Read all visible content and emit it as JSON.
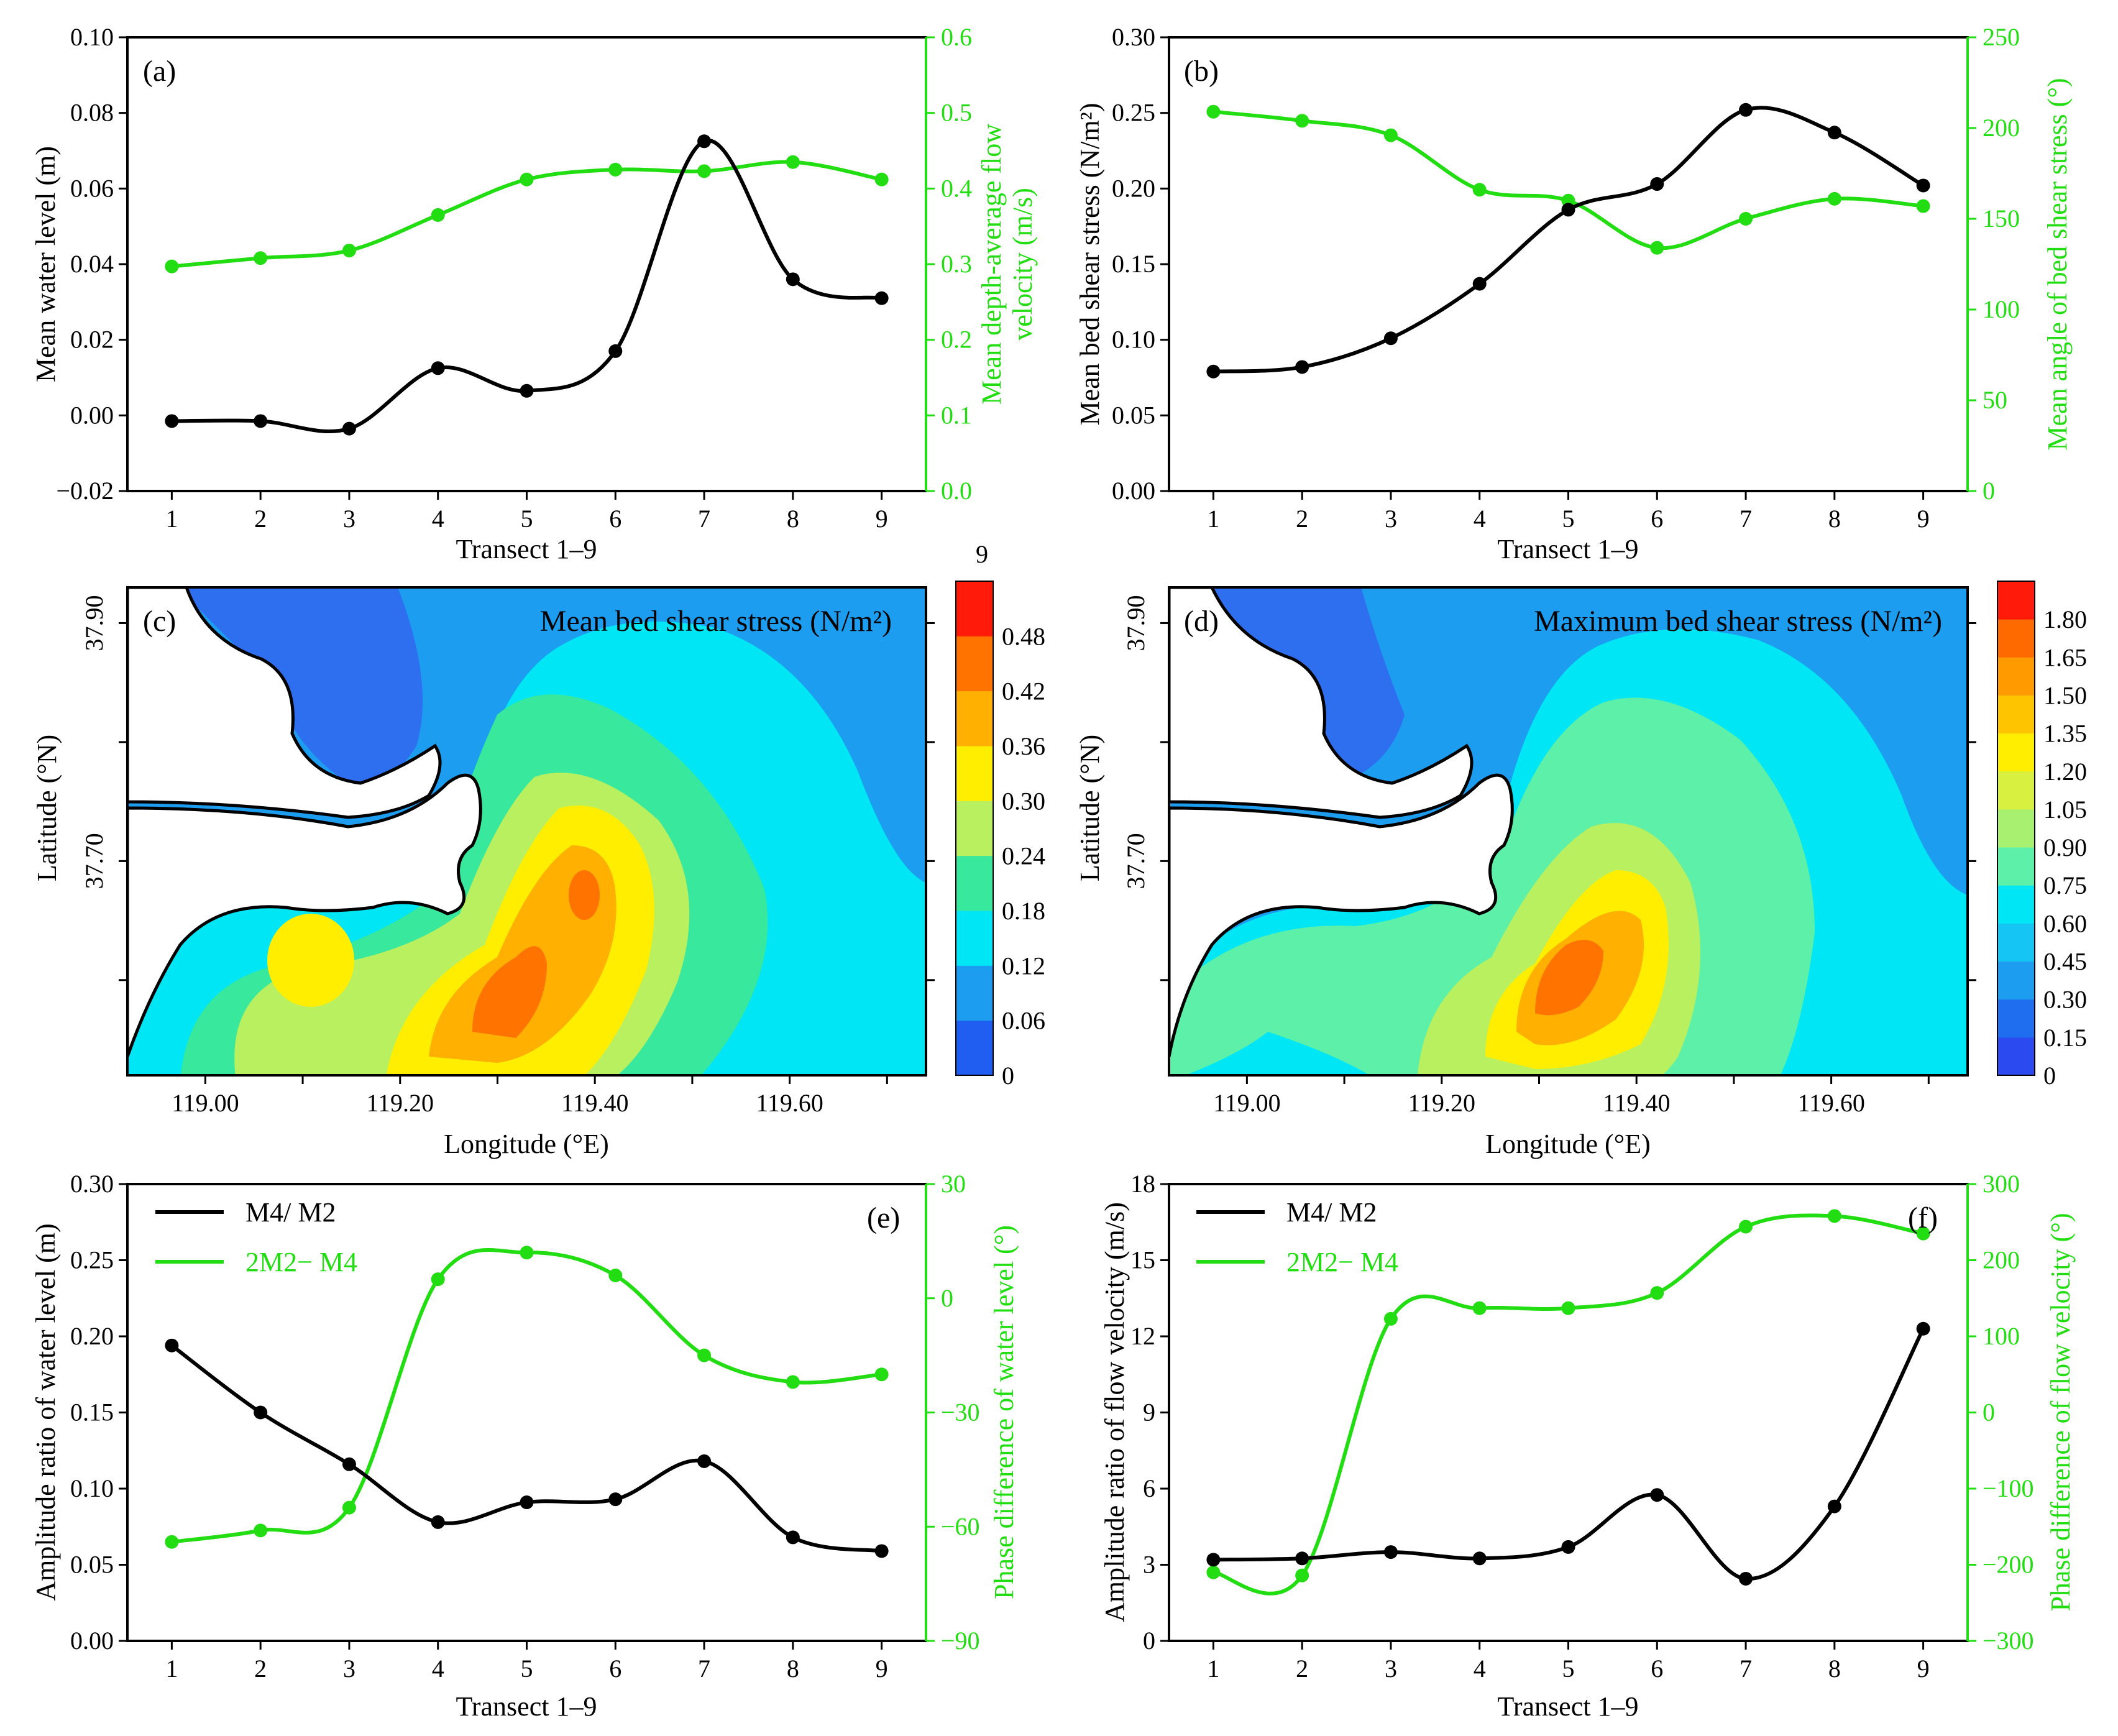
{
  "colors": {
    "black_series": "#000000",
    "green_series": "#22dd11",
    "land": "#ffffff"
  },
  "transect_x": [
    1,
    2,
    3,
    4,
    5,
    6,
    7,
    8,
    9
  ],
  "charts": {
    "a": {
      "panel": "(a)",
      "xlabel": "Transect 1–9",
      "ylabel": "Mean water level (m)",
      "y2label_line1": "Mean depth-average flow",
      "y2label_line2": "velocity (m/s)",
      "yticks": [
        "−0.02",
        "0.00",
        "0.02",
        "0.04",
        "0.06",
        "0.08",
        "0.10"
      ],
      "y2ticks": [
        "0.0",
        "0.1",
        "0.2",
        "0.3",
        "0.4",
        "0.5",
        "0.6"
      ]
    },
    "b": {
      "panel": "(b)",
      "xlabel": "Transect 1–9",
      "ylabel": "Mean bed shear stress (N/m²)",
      "y2label": "Mean angle of bed shear stress (°)",
      "yticks": [
        "0.00",
        "0.05",
        "0.10",
        "0.15",
        "0.20",
        "0.25",
        "0.30"
      ],
      "y2ticks": [
        "0",
        "50",
        "100",
        "150",
        "200",
        "250"
      ]
    },
    "c": {
      "panel": "(c)",
      "title": "Mean bed shear stress (N/m²)",
      "xlabel": "Longitude (°E)",
      "ylabel": "Latitude (°N)",
      "xticks": [
        "119.00",
        "119.20",
        "119.40",
        "119.60"
      ],
      "yticks": [
        "37.70",
        "37.90"
      ],
      "cbar_top": "9",
      "cbar_ticks": [
        "0",
        "0.06",
        "0.12",
        "0.18",
        "0.24",
        "0.30",
        "0.36",
        "0.42",
        "0.48"
      ]
    },
    "d": {
      "panel": "(d)",
      "title": "Maximum bed shear stress (N/m²)",
      "xlabel": "Longitude (°E)",
      "ylabel": "Latitude (°N)",
      "xticks": [
        "119.00",
        "119.20",
        "119.40",
        "119.60"
      ],
      "yticks": [
        "37.70",
        "37.90"
      ],
      "cbar_ticks": [
        "0",
        "0.15",
        "0.30",
        "0.45",
        "0.60",
        "0.75",
        "0.90",
        "1.05",
        "1.20",
        "1.35",
        "1.50",
        "1.65",
        "1.80"
      ]
    },
    "e": {
      "panel": "(e)",
      "xlabel": "Transect 1–9",
      "ylabel": "Amplitude ratio of water level (m)",
      "y2label": "Phase difference of water level (°)",
      "yticks": [
        "0.00",
        "0.05",
        "0.10",
        "0.15",
        "0.20",
        "0.25",
        "0.30"
      ],
      "y2ticks": [
        "−90",
        "−60",
        "−30",
        "0",
        "30"
      ],
      "legend1": "M4/ M2",
      "legend2": "2M2− M4"
    },
    "f": {
      "panel": "(f)",
      "xlabel": "Transect 1–9",
      "ylabel": "Amplitude  ratio of flow velocity (m/s)",
      "y2label": "Phase difference of flow velocity (°)",
      "yticks": [
        "0",
        "3",
        "6",
        "9",
        "12",
        "15",
        "18"
      ],
      "y2ticks": [
        "−300",
        "−200",
        "−100",
        "0",
        "100",
        "200",
        "300"
      ],
      "legend1": "M4/ M2",
      "legend2": "2M2− M4"
    }
  },
  "chart_data": [
    {
      "type": "line",
      "panel": "a",
      "x": [
        1,
        2,
        3,
        4,
        5,
        6,
        7,
        8,
        9
      ],
      "xlim": [
        0.5,
        9.5
      ],
      "series": [
        {
          "axis": "left",
          "ylim": [
            -0.02,
            0.1
          ],
          "values": [
            -0.0015,
            -0.0015,
            -0.0035,
            0.0125,
            0.0065,
            0.017,
            0.0725,
            0.036,
            0.031
          ]
        },
        {
          "axis": "right",
          "ylim": [
            0,
            0.6
          ],
          "values": [
            0.297,
            0.308,
            0.318,
            0.365,
            0.412,
            0.425,
            0.423,
            0.435,
            0.412
          ]
        }
      ]
    },
    {
      "type": "line",
      "panel": "b",
      "x": [
        1,
        2,
        3,
        4,
        5,
        6,
        7,
        8,
        9
      ],
      "xlim": [
        0.5,
        9.5
      ],
      "series": [
        {
          "axis": "left",
          "ylim": [
            0,
            0.3
          ],
          "values": [
            0.079,
            0.082,
            0.101,
            0.137,
            0.186,
            0.203,
            0.252,
            0.237,
            0.202
          ]
        },
        {
          "axis": "right",
          "ylim": [
            0,
            250
          ],
          "values": [
            209,
            204,
            196,
            166,
            160,
            134,
            150,
            161,
            157
          ]
        }
      ]
    },
    {
      "type": "heatmap",
      "panel": "c",
      "title": "Mean bed shear stress (N/m²)",
      "xlim": [
        118.92,
        119.74
      ],
      "ylim": [
        37.52,
        37.93
      ],
      "levels": [
        0,
        0.06,
        0.12,
        0.18,
        0.24,
        0.3,
        0.36,
        0.42,
        0.48
      ],
      "xticks": [
        119.0,
        119.2,
        119.4,
        119.6
      ],
      "yticks": [
        37.7,
        37.9
      ]
    },
    {
      "type": "heatmap",
      "panel": "d",
      "title": "Maximum bed shear stress (N/m²)",
      "xlim": [
        118.92,
        119.74
      ],
      "ylim": [
        37.52,
        37.93
      ],
      "levels": [
        0,
        0.15,
        0.3,
        0.45,
        0.6,
        0.75,
        0.9,
        1.05,
        1.2,
        1.35,
        1.5,
        1.65,
        1.8
      ],
      "xticks": [
        119.0,
        119.2,
        119.4,
        119.6
      ],
      "yticks": [
        37.7,
        37.9
      ]
    },
    {
      "type": "line",
      "panel": "e",
      "x": [
        1,
        2,
        3,
        4,
        5,
        6,
        7,
        8,
        9
      ],
      "xlim": [
        0.5,
        9.5
      ],
      "series": [
        {
          "name": "M4/ M2",
          "axis": "left",
          "ylim": [
            0,
            0.3
          ],
          "values": [
            0.194,
            0.15,
            0.116,
            0.078,
            0.091,
            0.093,
            0.118,
            0.068,
            0.059
          ]
        },
        {
          "name": "2M2− M4",
          "axis": "right",
          "ylim": [
            -90,
            30
          ],
          "values": [
            -64,
            -61,
            -55,
            5,
            12,
            6,
            -15,
            -22,
            -20
          ]
        }
      ]
    },
    {
      "type": "line",
      "panel": "f",
      "x": [
        1,
        2,
        3,
        4,
        5,
        6,
        7,
        8,
        9
      ],
      "xlim": [
        0.5,
        9.5
      ],
      "series": [
        {
          "name": "M4/ M2",
          "axis": "left",
          "ylim": [
            0,
            18
          ],
          "values": [
            3.2,
            3.25,
            3.5,
            3.25,
            3.7,
            5.75,
            2.45,
            5.3,
            12.3
          ]
        },
        {
          "name": "2M2− M4",
          "axis": "right",
          "ylim": [
            -300,
            300
          ],
          "values": [
            -210,
            -214,
            123,
            137,
            137,
            157,
            244,
            258,
            235
          ]
        }
      ]
    }
  ]
}
